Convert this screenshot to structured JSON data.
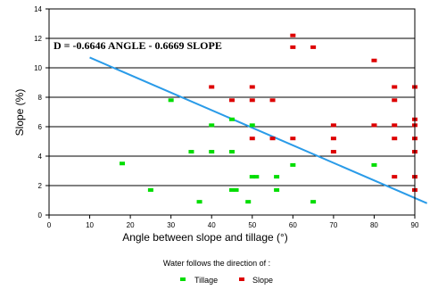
{
  "chart_data": {
    "type": "scatter",
    "xlabel": "Angle between slope and tillage (°)",
    "ylabel": "Slope (%)",
    "xlim": [
      0,
      90
    ],
    "ylim": [
      0,
      14
    ],
    "x_ticks": [
      0,
      10,
      20,
      30,
      40,
      50,
      60,
      70,
      80,
      90
    ],
    "y_ticks": [
      0,
      2,
      4,
      6,
      8,
      10,
      12,
      14
    ],
    "grid": "horizontal",
    "equation": "D = -0.6646 ANGLE - 0.6669 SLOPE",
    "legend_title": "Water follows the direction of :",
    "legend_placement": "bottom",
    "series": [
      {
        "name": "Tillage",
        "color": "#00dd00",
        "points": [
          [
            18,
            3.5
          ],
          [
            25,
            1.7
          ],
          [
            30,
            7.8
          ],
          [
            35,
            4.3
          ],
          [
            37,
            0.9
          ],
          [
            40,
            6.1
          ],
          [
            40,
            4.3
          ],
          [
            45,
            6.5
          ],
          [
            45,
            4.3
          ],
          [
            45,
            1.7
          ],
          [
            46,
            1.7
          ],
          [
            49,
            0.9
          ],
          [
            50,
            6.1
          ],
          [
            50,
            2.6
          ],
          [
            51,
            2.6
          ],
          [
            56,
            2.6
          ],
          [
            56,
            1.7
          ],
          [
            60,
            3.4
          ],
          [
            65,
            0.9
          ],
          [
            80,
            3.4
          ]
        ]
      },
      {
        "name": "Slope",
        "color": "#dd0000",
        "points": [
          [
            40,
            8.7
          ],
          [
            45,
            7.8
          ],
          [
            50,
            8.7
          ],
          [
            50,
            7.8
          ],
          [
            50,
            5.2
          ],
          [
            55,
            7.8
          ],
          [
            55,
            5.2
          ],
          [
            60,
            12.2
          ],
          [
            60,
            11.4
          ],
          [
            60,
            5.2
          ],
          [
            65,
            11.4
          ],
          [
            70,
            6.1
          ],
          [
            70,
            5.2
          ],
          [
            70,
            4.3
          ],
          [
            80,
            10.5
          ],
          [
            80,
            6.1
          ],
          [
            85,
            8.7
          ],
          [
            85,
            7.8
          ],
          [
            85,
            6.1
          ],
          [
            85,
            5.2
          ],
          [
            85,
            2.6
          ],
          [
            90,
            8.7
          ],
          [
            90,
            6.5
          ],
          [
            90,
            6.1
          ],
          [
            90,
            5.2
          ],
          [
            90,
            4.3
          ],
          [
            90,
            2.6
          ],
          [
            90,
            1.7
          ]
        ]
      }
    ],
    "trend_line": {
      "color": "#2a9be8",
      "x": [
        10,
        93
      ],
      "y": [
        10.7,
        0.8
      ]
    }
  }
}
